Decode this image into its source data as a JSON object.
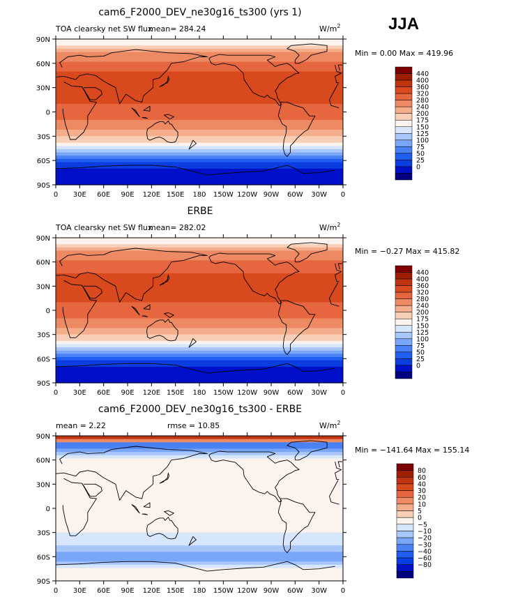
{
  "season": "JJA",
  "colors": {
    "abs_levels": [
      "#00007f",
      "#0010c8",
      "#0a3ee0",
      "#1f5ef0",
      "#4a82f5",
      "#7aa6f8",
      "#a8c6fa",
      "#d6e6fb",
      "#fdf3ee",
      "#f8cfb6",
      "#f4ae8c",
      "#ee8a63",
      "#e6663f",
      "#d84a1e",
      "#c03410",
      "#9e1e04",
      "#7f0000"
    ],
    "diff_levels": [
      "#00007f",
      "#0010c8",
      "#0a3ee0",
      "#1f5ef0",
      "#4a82f5",
      "#7aa6f8",
      "#a8c6fa",
      "#d6e6fb",
      "#fdf3ee",
      "#f8cfb6",
      "#f4ae8c",
      "#ee8a63",
      "#e6663f",
      "#d84a1e",
      "#c03410",
      "#9e1e04",
      "#7f0000"
    ],
    "land": "#000000"
  },
  "lat_ticks": [
    "90N",
    "60N",
    "30N",
    "0",
    "30S",
    "60S",
    "90S"
  ],
  "lon_ticks": [
    "0",
    "30E",
    "60E",
    "90E",
    "120E",
    "150E",
    "180",
    "150W",
    "120W",
    "90W",
    "60W",
    "30W",
    "0"
  ],
  "panels": [
    {
      "title": "cam6_F2000_DEV_ne30g16_ts300 (yrs 1)",
      "left_label": "TOA clearsky net SW flux",
      "mean_text": "mean= 284.24",
      "units": "W/m",
      "units_sup": "2",
      "minmax": "Min =    0.00 Max = 419.96",
      "cb_labels": [
        "440",
        "400",
        "360",
        "320",
        "280",
        "240",
        "200",
        "175",
        "150",
        "125",
        "100",
        "75",
        "50",
        "25",
        "0"
      ]
    },
    {
      "title": "ERBE",
      "left_label": "TOA clearsky net SW flux",
      "mean_text": "mean= 282.02",
      "units": "W/m",
      "units_sup": "2",
      "minmax": "Min =  −0.27 Max = 415.82",
      "cb_labels": [
        "440",
        "400",
        "360",
        "320",
        "280",
        "240",
        "200",
        "175",
        "150",
        "125",
        "100",
        "75",
        "50",
        "25",
        "0"
      ]
    },
    {
      "title": "cam6_F2000_DEV_ne30g16_ts300 - ERBE",
      "left_label": "mean =    2.22",
      "mean_text": "rmse =   10.85",
      "units": "W/m",
      "units_sup": "2",
      "minmax": "Min = −141.64 Max = 155.14",
      "cb_labels": [
        "80",
        "60",
        "40",
        "30",
        "20",
        "10",
        "5",
        "0",
        "−5",
        "−10",
        "−20",
        "−30",
        "−40",
        "−60",
        "−80"
      ]
    }
  ],
  "chart_data": [
    {
      "type": "heatmap",
      "title": "cam6_F2000_DEV_ne30g16_ts300 (yrs 1)",
      "variable": "TOA clearsky net SW flux",
      "units": "W/m2",
      "mean": 284.24,
      "min": 0.0,
      "max": 419.96,
      "contour_levels": [
        0,
        25,
        50,
        75,
        100,
        125,
        150,
        175,
        200,
        240,
        280,
        320,
        360,
        400,
        440
      ],
      "zonal_mean_by_lat": [
        {
          "lat": 85,
          "value": 180
        },
        {
          "lat": 75,
          "value": 270
        },
        {
          "lat": 60,
          "value": 330
        },
        {
          "lat": 45,
          "value": 370
        },
        {
          "lat": 30,
          "value": 385
        },
        {
          "lat": 15,
          "value": 370
        },
        {
          "lat": 0,
          "value": 345
        },
        {
          "lat": -15,
          "value": 300
        },
        {
          "lat": -30,
          "value": 240
        },
        {
          "lat": -45,
          "value": 150
        },
        {
          "lat": -60,
          "value": 50
        },
        {
          "lat": -75,
          "value": 5
        }
      ]
    },
    {
      "type": "heatmap",
      "title": "ERBE",
      "variable": "TOA clearsky net SW flux",
      "units": "W/m2",
      "mean": 282.02,
      "min": -0.27,
      "max": 415.82,
      "contour_levels": [
        0,
        25,
        50,
        75,
        100,
        125,
        150,
        175,
        200,
        240,
        280,
        320,
        360,
        400,
        440
      ],
      "zonal_mean_by_lat": [
        {
          "lat": 85,
          "value": 180
        },
        {
          "lat": 75,
          "value": 270
        },
        {
          "lat": 60,
          "value": 325
        },
        {
          "lat": 45,
          "value": 365
        },
        {
          "lat": 30,
          "value": 385
        },
        {
          "lat": 15,
          "value": 370
        },
        {
          "lat": 0,
          "value": 345
        },
        {
          "lat": -15,
          "value": 300
        },
        {
          "lat": -30,
          "value": 240
        },
        {
          "lat": -45,
          "value": 150
        },
        {
          "lat": -60,
          "value": 50
        },
        {
          "lat": -75,
          "value": 5
        }
      ]
    },
    {
      "type": "heatmap",
      "title": "cam6_F2000_DEV_ne30g16_ts300 - ERBE",
      "units": "W/m2",
      "mean": 2.22,
      "rmse": 10.85,
      "min": -141.64,
      "max": 155.14,
      "contour_levels": [
        -80,
        -60,
        -40,
        -30,
        -20,
        -10,
        -5,
        0,
        5,
        10,
        20,
        30,
        40,
        60,
        80
      ],
      "zonal_mean_by_lat": [
        {
          "lat": 87,
          "value": 60
        },
        {
          "lat": 80,
          "value": -30
        },
        {
          "lat": 70,
          "value": -10
        },
        {
          "lat": 55,
          "value": 5
        },
        {
          "lat": 30,
          "value": 3
        },
        {
          "lat": 0,
          "value": 2
        },
        {
          "lat": -30,
          "value": 0
        },
        {
          "lat": -45,
          "value": -3
        },
        {
          "lat": -60,
          "value": -15
        },
        {
          "lat": -75,
          "value": 0
        }
      ]
    }
  ]
}
